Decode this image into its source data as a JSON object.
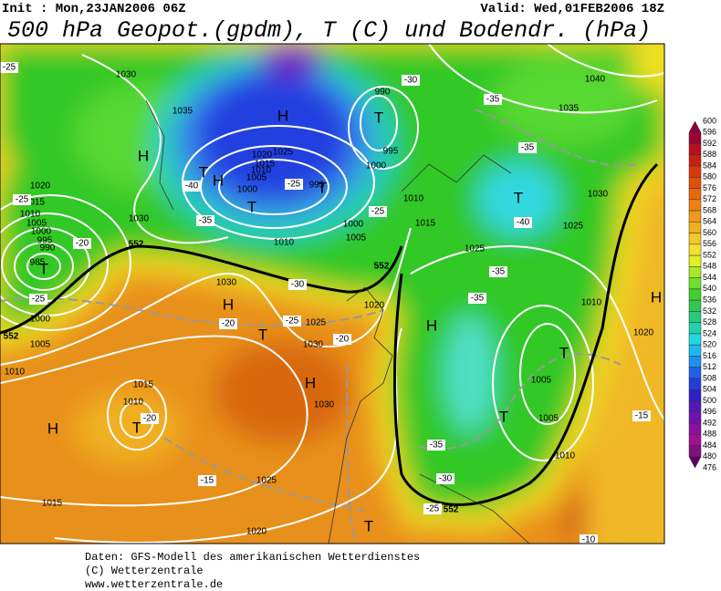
{
  "header": {
    "init": "Init : Mon,23JAN2006 06Z",
    "valid": "Valid: Wed,01FEB2006 18Z",
    "title": "500 hPa Geopot.(gpdm), T (C) und Bodendr. (hPa)"
  },
  "map": {
    "centers": [
      "H",
      "H",
      "H",
      "H",
      "H",
      "H",
      "H",
      "H",
      "T",
      "T",
      "T",
      "T",
      "T",
      "T",
      "T",
      "T",
      "T",
      "T",
      "T"
    ],
    "isobar_labels": [
      "1040",
      "1035",
      "1030",
      "1025",
      "1010",
      "1015",
      "1025",
      "1020",
      "1025",
      "1030",
      "1030",
      "1000",
      "1005",
      "1010",
      "1030",
      "1020",
      "1015",
      "1010",
      "1005",
      "1000",
      "995",
      "990",
      "985",
      "1000",
      "1005",
      "1010",
      "1015",
      "1010",
      "1030",
      "1025",
      "1020",
      "1015",
      "1010",
      "1020",
      "1005",
      "1005",
      "1010",
      "1030",
      "1035",
      "990",
      "995",
      "1000",
      "1020",
      "1015",
      "1010",
      "1005",
      "1025",
      "1000",
      "995"
    ],
    "temperature_labels": [
      "-25",
      "-30",
      "-35",
      "-35",
      "-40",
      "-35",
      "-25",
      "-25",
      "-40",
      "-20",
      "-25",
      "-30",
      "-25",
      "-20",
      "-20",
      "-35",
      "-35",
      "-20",
      "-15",
      "-35",
      "-30",
      "-25",
      "-15",
      "-10",
      "-25"
    ],
    "contour_labels": [
      "552",
      "552",
      "552",
      "552"
    ]
  },
  "colorbar": {
    "levels": [
      600,
      596,
      592,
      588,
      584,
      580,
      576,
      572,
      568,
      564,
      560,
      556,
      552,
      548,
      544,
      540,
      536,
      532,
      528,
      524,
      520,
      516,
      512,
      508,
      504,
      500,
      496,
      492,
      488,
      484,
      480,
      476
    ]
  },
  "footer": {
    "lines": [
      "Daten: GFS-Modell des amerikanischen Wetterdienstes",
      "(C) Wetterzentrale",
      "www.wetterzentrale.de"
    ]
  }
}
